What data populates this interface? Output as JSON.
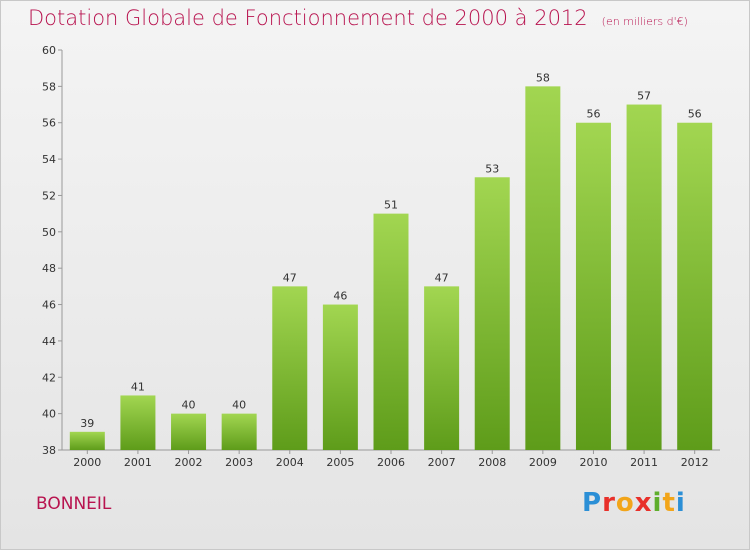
{
  "title": "Dotation Globale de Fonctionnement de 2000 à 2012",
  "unit": "(en milliers d'€)",
  "place": "BONNEIL",
  "logo": {
    "text": "Proxiti"
  },
  "colors": {
    "title": "#b8134f",
    "bar_top": "#9fd34f",
    "bar_bottom": "#5e9c1a"
  },
  "chart_data": {
    "type": "bar",
    "categories": [
      "2000",
      "2001",
      "2002",
      "2003",
      "2004",
      "2005",
      "2006",
      "2007",
      "2008",
      "2009",
      "2010",
      "2011",
      "2012"
    ],
    "values": [
      39,
      41,
      40,
      40,
      47,
      46,
      51,
      47,
      53,
      58,
      56,
      57,
      56
    ],
    "ylim": [
      38,
      60
    ],
    "yticks": [
      38,
      40,
      42,
      44,
      46,
      48,
      50,
      52,
      54,
      56,
      58,
      60
    ],
    "grid": false,
    "data_labels": true
  }
}
